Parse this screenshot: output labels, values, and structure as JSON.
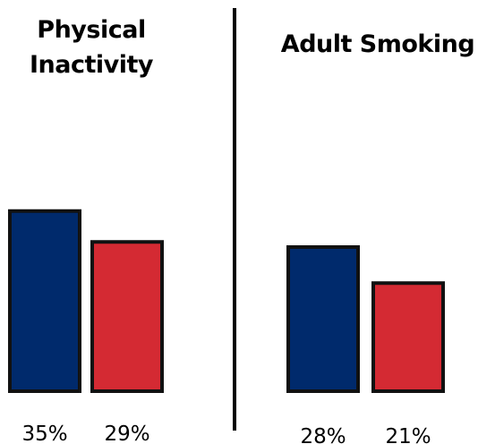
{
  "chart_data": [
    {
      "type": "bar",
      "title": "Physical Inactivity",
      "title_lines": [
        "Physical",
        "Inactivity"
      ],
      "categories": [
        "",
        ""
      ],
      "values": [
        35,
        29
      ],
      "value_labels": [
        "35%",
        "29%"
      ],
      "colors": [
        "#002A6C",
        "#D42A33"
      ],
      "grid": false,
      "legend": "none"
    },
    {
      "type": "bar",
      "title": "Adult Smoking",
      "title_lines": [
        "Adult Smoking"
      ],
      "categories": [
        "",
        ""
      ],
      "values": [
        28,
        21
      ],
      "value_labels": [
        "28%",
        "21%"
      ],
      "colors": [
        "#002A6C",
        "#D42A33"
      ],
      "grid": false,
      "legend": "none"
    }
  ],
  "colors": {
    "bar_outline": "#111111",
    "divider": "#000000"
  }
}
